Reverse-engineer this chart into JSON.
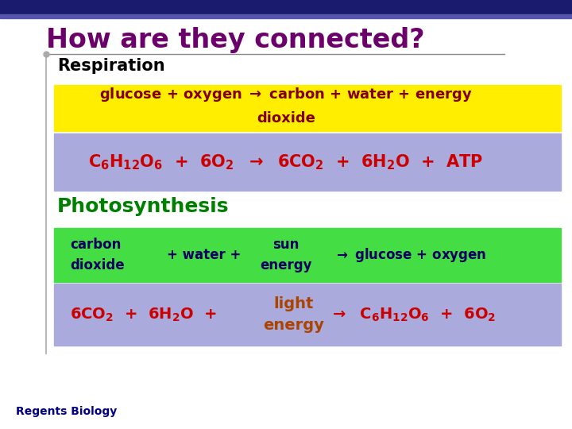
{
  "title": "How are they connected?",
  "title_color": "#6b006b",
  "background_color": "#ffffff",
  "header_bar_color": "#1a1a6e",
  "resp_label": "Respiration",
  "resp_label_color": "#000000",
  "resp_row1_bg": "#ffee00",
  "resp_row1_color": "#800000",
  "resp_row2_bg": "#aaaadd",
  "resp_row2_color": "#cc0000",
  "photo_label": "Photosynthesis",
  "photo_label_color": "#008000",
  "photo_row1_bg": "#44dd44",
  "photo_row1_color": "#000060",
  "photo_row2_bg": "#aaaadd",
  "photo_row2_color": "#cc0000",
  "footer": "Regents Biology",
  "footer_color": "#000080",
  "arrow_color": "#000080"
}
